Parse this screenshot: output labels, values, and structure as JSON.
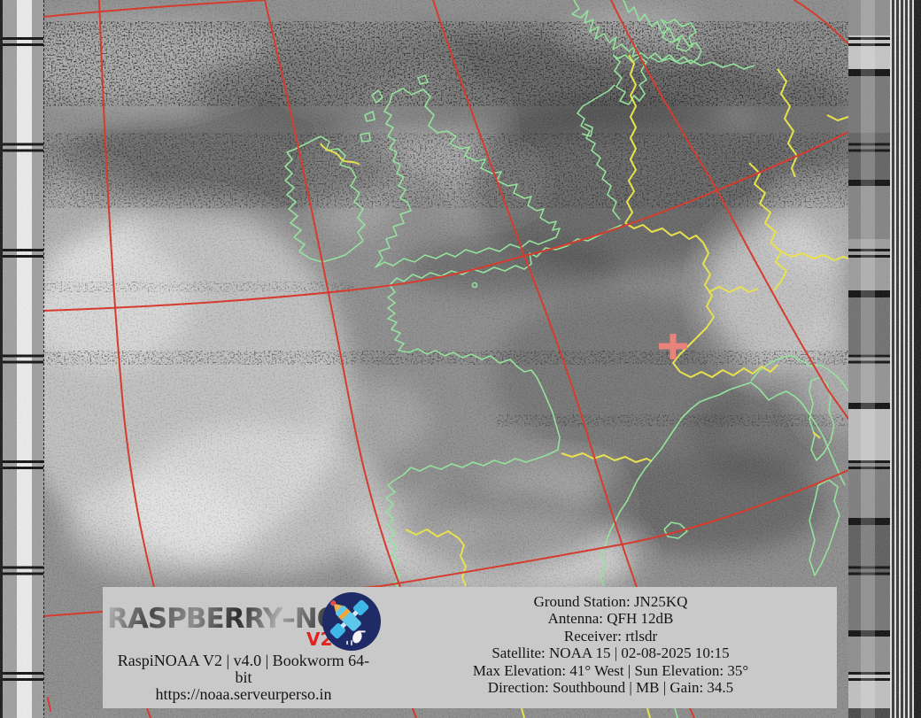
{
  "image_type": "NOAA APT weather satellite capture with map overlay",
  "footer": {
    "left": {
      "logo_text": "RASPBERRY–NOAA",
      "logo_version": "V2",
      "line1": "RaspiNOAA V2 | v4.0 | Bookworm 64-",
      "line2": "bit",
      "line3": "https://noaa.serveurperso.in"
    },
    "right": {
      "lines": [
        "Ground Station: JN25KQ",
        "Antenna: QFH 12dB",
        "Receiver: rtlsdr",
        "Satellite: NOAA 15 | 02-08-2025 10:15",
        "Max Elevation: 41° West | Sun Elevation: 35°",
        "Direction: Southbound | MB | Gain: 34.5"
      ]
    }
  },
  "colors": {
    "coastline": "#93e39c",
    "border": "#e8e14e",
    "graticule": "#d63c2e",
    "marker": "#e8827a",
    "footer_bg": "#c9c9c9",
    "footer_text": "#151515",
    "logo_badge": "#1e2b66",
    "logo_v2": "#e32222"
  }
}
